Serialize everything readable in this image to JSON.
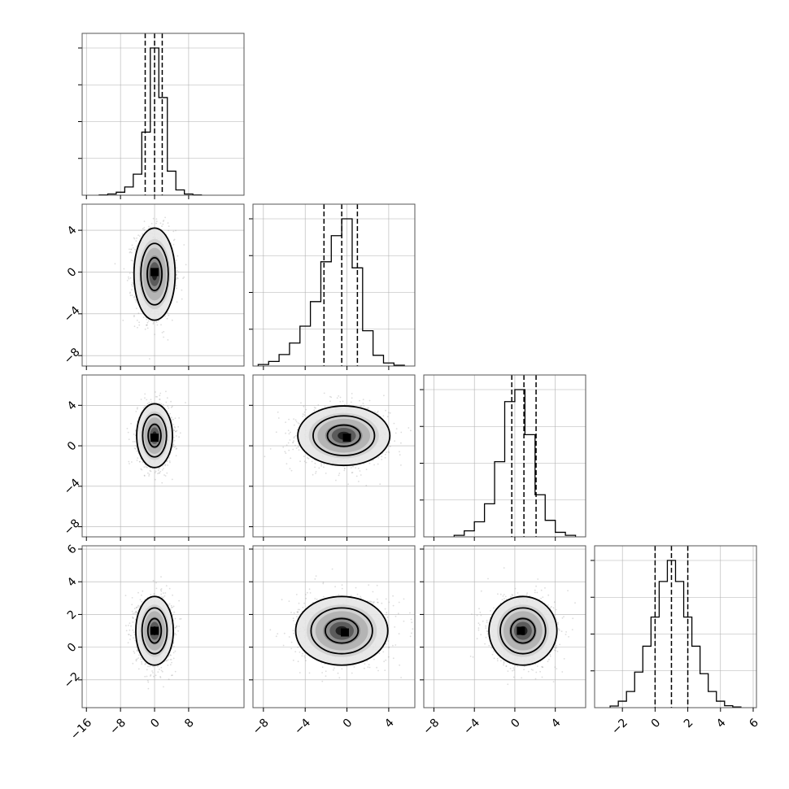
{
  "chart_data": {
    "type": "corner",
    "parameters": 4,
    "grid": true,
    "colors": {
      "hist": "#000000",
      "points": "#9a9a9a",
      "grid": "#b0b0b0",
      "frame": "#555555"
    },
    "axes": [
      {
        "range": [
          -17,
          21
        ],
        "ticks": [
          -16,
          -8,
          0,
          8
        ],
        "tick_labels": [
          "−16",
          "−8",
          "0",
          "8"
        ]
      },
      {
        "range": [
          -9,
          6.5
        ],
        "ticks": [
          -8,
          -4,
          0,
          4
        ],
        "tick_labels": [
          "−8",
          "−4",
          "0",
          "4"
        ]
      },
      {
        "range": [
          -9,
          7
        ],
        "ticks": [
          -8,
          -4,
          0,
          4
        ],
        "tick_labels": [
          "−8",
          "−4",
          "0",
          "4"
        ]
      },
      {
        "range": [
          -3.7,
          6.2
        ],
        "ticks": [
          -2,
          0,
          2,
          4,
          6
        ],
        "tick_labels": [
          "−2",
          "0",
          "2",
          "4",
          "6"
        ]
      }
    ],
    "histograms": [
      {
        "param": 0,
        "bin_edges": [
          -13,
          -11,
          -9,
          -7,
          -5,
          -3,
          -1,
          1,
          3,
          5,
          7,
          9,
          11
        ],
        "counts": [
          2,
          8,
          20,
          55,
          140,
          420,
          980,
          650,
          160,
          35,
          8,
          2
        ],
        "quantiles": [
          -2.2,
          0.0,
          1.8
        ]
      },
      {
        "param": 1,
        "bin_edges": [
          -8.5,
          -7.5,
          -6.5,
          -5.5,
          -4.5,
          -3.5,
          -2.5,
          -1.5,
          -0.5,
          0.5,
          1.5,
          2.5,
          3.5,
          4.5,
          5.5
        ],
        "counts": [
          10,
          30,
          75,
          150,
          260,
          420,
          680,
          850,
          960,
          640,
          230,
          70,
          20,
          5
        ],
        "quantiles": [
          -2.2,
          -0.5,
          1.0
        ]
      },
      {
        "param": 2,
        "bin_edges": [
          -6,
          -5,
          -4,
          -3,
          -2,
          -1,
          0,
          1,
          2,
          3,
          4,
          5,
          6
        ],
        "counts": [
          10,
          40,
          100,
          220,
          500,
          900,
          980,
          680,
          280,
          110,
          30,
          10
        ],
        "quantiles": [
          -0.3,
          0.9,
          2.1
        ]
      },
      {
        "param": 3,
        "bin_edges": [
          -2.75,
          -2.25,
          -1.75,
          -1.25,
          -0.75,
          -0.25,
          0.25,
          0.75,
          1.25,
          1.75,
          2.25,
          2.75,
          3.25,
          3.75,
          4.25,
          4.75,
          5.25
        ],
        "counts": [
          10,
          40,
          100,
          220,
          380,
          560,
          780,
          910,
          780,
          560,
          380,
          210,
          100,
          40,
          12,
          4
        ],
        "quantiles": [
          0.0,
          1.0,
          2.0
        ]
      }
    ],
    "scatter_panels": [
      {
        "x_param": 0,
        "y_param": 1,
        "mean": [
          0.0,
          -0.2
        ],
        "sd": [
          2.3,
          2.1
        ],
        "peak": [
          0.0,
          0.0
        ]
      },
      {
        "x_param": 0,
        "y_param": 2,
        "mean": [
          0.0,
          1.0
        ],
        "sd": [
          2.0,
          1.5
        ],
        "peak": [
          0.0,
          0.8
        ]
      },
      {
        "x_param": 1,
        "y_param": 2,
        "mean": [
          -0.3,
          1.0
        ],
        "sd": [
          2.1,
          1.4
        ],
        "peak": [
          0.0,
          0.8
        ]
      },
      {
        "x_param": 0,
        "y_param": 3,
        "mean": [
          0.0,
          1.0
        ],
        "sd": [
          2.1,
          1.0
        ],
        "peak": [
          0.0,
          1.0
        ]
      },
      {
        "x_param": 1,
        "y_param": 3,
        "mean": [
          -0.5,
          1.0
        ],
        "sd": [
          2.1,
          1.0
        ],
        "peak": [
          -0.2,
          0.9
        ]
      },
      {
        "x_param": 2,
        "y_param": 3,
        "mean": [
          0.8,
          1.0
        ],
        "sd": [
          1.6,
          1.0
        ],
        "peak": [
          0.6,
          1.0
        ]
      }
    ]
  }
}
